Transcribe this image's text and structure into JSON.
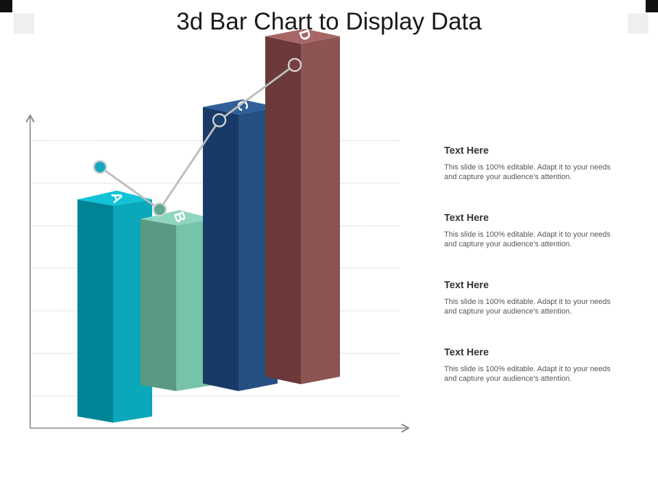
{
  "title": "3d Bar Chart to Display Data",
  "chart_data": {
    "type": "bar",
    "categories": [
      "A",
      "B",
      "C",
      "D"
    ],
    "values": [
      5.1,
      3.9,
      6.5,
      8.0
    ],
    "line_values": [
      5.3,
      4.3,
      6.4,
      7.7
    ],
    "ylim": [
      0,
      8.5
    ],
    "grid": true,
    "colors": {
      "A": {
        "front": "#0ba7bb",
        "side": "#008495",
        "top": "#10c3d6"
      },
      "B": {
        "front": "#77c2ab",
        "side": "#5b9983",
        "top": "#8fd6c0"
      },
      "C": {
        "front": "#264f82",
        "side": "#183a66",
        "top": "#2f5f99"
      },
      "D": {
        "front": "#8c5453",
        "side": "#6b3939",
        "top": "#a76766"
      }
    },
    "marker_colors": [
      "#17a6be",
      "#5ea98f",
      "#17406f",
      "#793f3f"
    ]
  },
  "text_blocks": [
    {
      "heading": "Text Here",
      "body": "This slide is 100% editable. Adapt it to your needs and capture your audience's attention."
    },
    {
      "heading": "Text Here",
      "body": "This slide is 100% editable. Adapt it to your needs and capture your audience's attention."
    },
    {
      "heading": "Text Here",
      "body": "This slide is 100% editable. Adapt it to your needs and capture your audience's attention."
    },
    {
      "heading": "Text Here",
      "body": "This slide is 100% editable. Adapt it to your needs and capture your audience's attention."
    }
  ]
}
